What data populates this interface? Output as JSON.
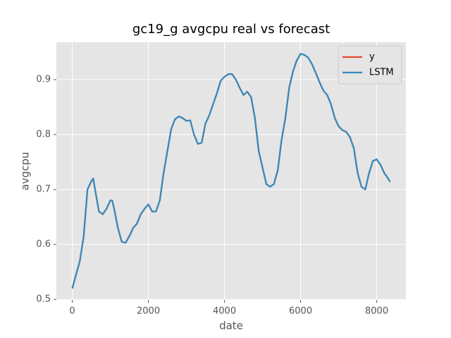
{
  "chart_data": {
    "type": "line",
    "title": "gc19_g avgcpu real vs forecast",
    "xlabel": "date",
    "ylabel": "avgcpu",
    "x": [
      0,
      200,
      300,
      400,
      500,
      550,
      600,
      700,
      800,
      900,
      1000,
      1050,
      1100,
      1200,
      1300,
      1400,
      1500,
      1600,
      1700,
      1800,
      1900,
      2000,
      2100,
      2200,
      2300,
      2400,
      2500,
      2600,
      2700,
      2800,
      2900,
      3000,
      3100,
      3200,
      3300,
      3400,
      3500,
      3600,
      3700,
      3800,
      3900,
      4000,
      4100,
      4200,
      4300,
      4400,
      4500,
      4600,
      4700,
      4800,
      4900,
      5000,
      5100,
      5200,
      5300,
      5400,
      5500,
      5600,
      5700,
      5800,
      5900,
      6000,
      6100,
      6200,
      6300,
      6400,
      6500,
      6600,
      6700,
      6800,
      6900,
      7000,
      7100,
      7200,
      7300,
      7400,
      7500,
      7600,
      7700,
      7800,
      7900,
      8000,
      8100,
      8200,
      8300,
      8350
    ],
    "series": [
      {
        "name": "y",
        "color": "#E24A33",
        "values": [
          0.52,
          0.57,
          0.615,
          0.7,
          0.715,
          0.72,
          0.7,
          0.66,
          0.655,
          0.665,
          0.68,
          0.68,
          0.665,
          0.63,
          0.605,
          0.603,
          0.615,
          0.63,
          0.638,
          0.655,
          0.665,
          0.673,
          0.66,
          0.66,
          0.68,
          0.73,
          0.77,
          0.81,
          0.828,
          0.833,
          0.83,
          0.825,
          0.826,
          0.8,
          0.783,
          0.785,
          0.82,
          0.835,
          0.855,
          0.875,
          0.898,
          0.905,
          0.91,
          0.91,
          0.9,
          0.885,
          0.872,
          0.878,
          0.868,
          0.83,
          0.77,
          0.74,
          0.71,
          0.705,
          0.71,
          0.735,
          0.79,
          0.83,
          0.885,
          0.915,
          0.935,
          0.947,
          0.945,
          0.94,
          0.928,
          0.912,
          0.895,
          0.88,
          0.872,
          0.855,
          0.83,
          0.815,
          0.808,
          0.805,
          0.795,
          0.775,
          0.73,
          0.705,
          0.7,
          0.73,
          0.752,
          0.755,
          0.745,
          0.73,
          0.72,
          0.714
        ]
      },
      {
        "name": "LSTM",
        "color": "#348ABD",
        "values": [
          0.52,
          0.57,
          0.615,
          0.7,
          0.715,
          0.72,
          0.7,
          0.66,
          0.655,
          0.665,
          0.68,
          0.68,
          0.665,
          0.63,
          0.605,
          0.603,
          0.615,
          0.63,
          0.638,
          0.655,
          0.665,
          0.673,
          0.66,
          0.66,
          0.68,
          0.73,
          0.77,
          0.81,
          0.828,
          0.833,
          0.83,
          0.825,
          0.826,
          0.8,
          0.783,
          0.785,
          0.82,
          0.835,
          0.855,
          0.875,
          0.898,
          0.905,
          0.91,
          0.91,
          0.9,
          0.885,
          0.872,
          0.878,
          0.868,
          0.83,
          0.77,
          0.74,
          0.71,
          0.705,
          0.71,
          0.735,
          0.79,
          0.83,
          0.885,
          0.915,
          0.935,
          0.947,
          0.945,
          0.94,
          0.928,
          0.912,
          0.895,
          0.88,
          0.872,
          0.855,
          0.83,
          0.815,
          0.808,
          0.805,
          0.795,
          0.775,
          0.73,
          0.705,
          0.7,
          0.73,
          0.752,
          0.755,
          0.745,
          0.73,
          0.72,
          0.714
        ]
      }
    ],
    "xlim": [
      -417.5,
      8767.5
    ],
    "ylim": [
      0.499,
      0.968
    ],
    "xticks": [
      0,
      2000,
      4000,
      6000,
      8000
    ],
    "yticks": [
      0.5,
      0.6,
      0.7,
      0.8,
      0.9
    ],
    "grid": true,
    "legend": "upper right"
  }
}
